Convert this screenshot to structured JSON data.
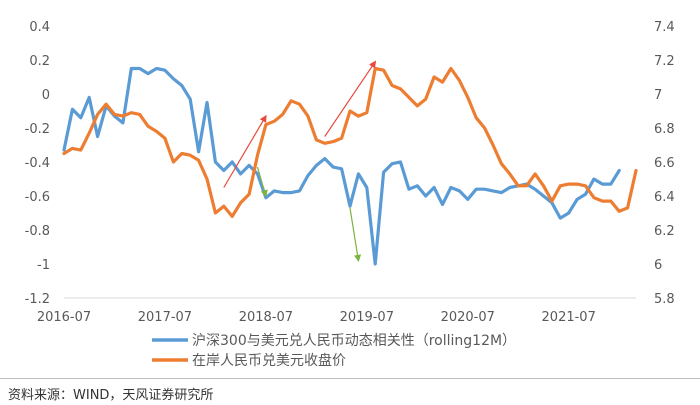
{
  "chart_data": {
    "type": "line",
    "title": "",
    "x_tick_labels": [
      "2016-07",
      "2017-07",
      "2018-07",
      "2019-07",
      "2020-07",
      "2021-07"
    ],
    "x_range": [
      "2016-07",
      "2022-03"
    ],
    "y_left": {
      "range": [
        -1.2,
        0.4
      ],
      "ticks": [
        0.4,
        0.2,
        0,
        -0.2,
        -0.4,
        -0.6,
        -0.8,
        -1,
        -1.2
      ]
    },
    "y_right": {
      "range": [
        5.8,
        7.4
      ],
      "ticks": [
        7.4,
        7.2,
        7,
        6.8,
        6.6,
        6.4,
        6.2,
        6,
        5.8
      ]
    },
    "grid": false,
    "legend_position": "bottom",
    "series": [
      {
        "name": "沪深300与美元兑人民币动态相关性（rolling12M）",
        "axis": "left",
        "color": "#5b9bd5",
        "points": [
          [
            "2016-07",
            -0.33
          ],
          [
            "2016-08",
            -0.09
          ],
          [
            "2016-09",
            -0.14
          ],
          [
            "2016-10",
            -0.02
          ],
          [
            "2016-11",
            -0.25
          ],
          [
            "2016-12",
            -0.07
          ],
          [
            "2017-01",
            -0.13
          ],
          [
            "2017-02",
            -0.17
          ],
          [
            "2017-03",
            0.15
          ],
          [
            "2017-04",
            0.15
          ],
          [
            "2017-05",
            0.12
          ],
          [
            "2017-06",
            0.15
          ],
          [
            "2017-07",
            0.14
          ],
          [
            "2017-08",
            0.09
          ],
          [
            "2017-09",
            0.05
          ],
          [
            "2017-10",
            -0.03
          ],
          [
            "2017-11",
            -0.34
          ],
          [
            "2017-12",
            -0.05
          ],
          [
            "2018-01",
            -0.4
          ],
          [
            "2018-02",
            -0.45
          ],
          [
            "2018-03",
            -0.4
          ],
          [
            "2018-04",
            -0.47
          ],
          [
            "2018-05",
            -0.42
          ],
          [
            "2018-06",
            -0.47
          ],
          [
            "2018-07",
            -0.61
          ],
          [
            "2018-08",
            -0.57
          ],
          [
            "2018-09",
            -0.58
          ],
          [
            "2018-10",
            -0.58
          ],
          [
            "2018-11",
            -0.57
          ],
          [
            "2018-12",
            -0.48
          ],
          [
            "2019-01",
            -0.42
          ],
          [
            "2019-02",
            -0.38
          ],
          [
            "2019-03",
            -0.43
          ],
          [
            "2019-04",
            -0.44
          ],
          [
            "2019-05",
            -0.66
          ],
          [
            "2019-06",
            -0.47
          ],
          [
            "2019-07",
            -0.55
          ],
          [
            "2019-08",
            -1.0
          ],
          [
            "2019-09",
            -0.46
          ],
          [
            "2019-10",
            -0.41
          ],
          [
            "2019-11",
            -0.4
          ],
          [
            "2019-12",
            -0.56
          ],
          [
            "2020-01",
            -0.54
          ],
          [
            "2020-02",
            -0.6
          ],
          [
            "2020-03",
            -0.55
          ],
          [
            "2020-04",
            -0.65
          ],
          [
            "2020-05",
            -0.55
          ],
          [
            "2020-06",
            -0.57
          ],
          [
            "2020-07",
            -0.62
          ],
          [
            "2020-08",
            -0.56
          ],
          [
            "2020-09",
            -0.56
          ],
          [
            "2020-10",
            -0.57
          ],
          [
            "2020-11",
            -0.58
          ],
          [
            "2020-12",
            -0.55
          ],
          [
            "2021-01",
            -0.54
          ],
          [
            "2021-02",
            -0.53
          ],
          [
            "2021-03",
            -0.56
          ],
          [
            "2021-04",
            -0.6
          ],
          [
            "2021-05",
            -0.64
          ],
          [
            "2021-06",
            -0.73
          ],
          [
            "2021-07",
            -0.7
          ],
          [
            "2021-08",
            -0.62
          ],
          [
            "2021-09",
            -0.59
          ],
          [
            "2021-10",
            -0.5
          ],
          [
            "2021-11",
            -0.53
          ],
          [
            "2021-12",
            -0.53
          ],
          [
            "2022-01",
            -0.45
          ]
        ]
      },
      {
        "name": "在岸人民币兑美元收盘价",
        "axis": "right",
        "color": "#ed7d31",
        "points": [
          [
            "2016-07",
            6.65
          ],
          [
            "2016-08",
            6.68
          ],
          [
            "2016-09",
            6.67
          ],
          [
            "2016-10",
            6.77
          ],
          [
            "2016-11",
            6.88
          ],
          [
            "2016-12",
            6.94
          ],
          [
            "2017-01",
            6.88
          ],
          [
            "2017-02",
            6.87
          ],
          [
            "2017-03",
            6.89
          ],
          [
            "2017-04",
            6.88
          ],
          [
            "2017-05",
            6.81
          ],
          [
            "2017-06",
            6.78
          ],
          [
            "2017-07",
            6.74
          ],
          [
            "2017-08",
            6.6
          ],
          [
            "2017-09",
            6.65
          ],
          [
            "2017-10",
            6.64
          ],
          [
            "2017-11",
            6.61
          ],
          [
            "2017-12",
            6.5
          ],
          [
            "2018-01",
            6.3
          ],
          [
            "2018-02",
            6.34
          ],
          [
            "2018-03",
            6.28
          ],
          [
            "2018-04",
            6.36
          ],
          [
            "2018-05",
            6.41
          ],
          [
            "2018-06",
            6.64
          ],
          [
            "2018-07",
            6.82
          ],
          [
            "2018-08",
            6.84
          ],
          [
            "2018-09",
            6.88
          ],
          [
            "2018-10",
            6.96
          ],
          [
            "2018-11",
            6.94
          ],
          [
            "2018-12",
            6.87
          ],
          [
            "2019-01",
            6.73
          ],
          [
            "2019-02",
            6.71
          ],
          [
            "2019-03",
            6.72
          ],
          [
            "2019-04",
            6.74
          ],
          [
            "2019-05",
            6.9
          ],
          [
            "2019-06",
            6.87
          ],
          [
            "2019-07",
            6.89
          ],
          [
            "2019-08",
            7.15
          ],
          [
            "2019-09",
            7.14
          ],
          [
            "2019-10",
            7.05
          ],
          [
            "2019-11",
            7.03
          ],
          [
            "2019-12",
            6.98
          ],
          [
            "2020-01",
            6.93
          ],
          [
            "2020-02",
            6.97
          ],
          [
            "2020-03",
            7.1
          ],
          [
            "2020-04",
            7.07
          ],
          [
            "2020-05",
            7.15
          ],
          [
            "2020-06",
            7.08
          ],
          [
            "2020-07",
            6.98
          ],
          [
            "2020-08",
            6.86
          ],
          [
            "2020-09",
            6.8
          ],
          [
            "2020-10",
            6.7
          ],
          [
            "2020-11",
            6.59
          ],
          [
            "2020-12",
            6.53
          ],
          [
            "2021-01",
            6.46
          ],
          [
            "2021-02",
            6.46
          ],
          [
            "2021-03",
            6.53
          ],
          [
            "2021-04",
            6.46
          ],
          [
            "2021-05",
            6.37
          ],
          [
            "2021-06",
            6.46
          ],
          [
            "2021-07",
            6.47
          ],
          [
            "2021-08",
            6.47
          ],
          [
            "2021-09",
            6.46
          ],
          [
            "2021-10",
            6.39
          ],
          [
            "2021-11",
            6.37
          ],
          [
            "2021-12",
            6.37
          ],
          [
            "2022-01",
            6.31
          ],
          [
            "2022-02",
            6.33
          ],
          [
            "2022-03",
            6.55
          ]
        ]
      }
    ],
    "annotations": [
      {
        "type": "arrow",
        "color": "#e8483b",
        "from": [
          "2018-02",
          -0.55
        ],
        "to": [
          "2018-07",
          -0.13
        ]
      },
      {
        "type": "arrow",
        "color": "#7cb342",
        "from": [
          "2018-06",
          -0.43
        ],
        "to": [
          "2018-07",
          -0.6
        ]
      },
      {
        "type": "arrow",
        "color": "#e8483b",
        "from": [
          "2019-02",
          -0.25
        ],
        "to": [
          "2019-08",
          0.19
        ]
      },
      {
        "type": "arrow",
        "color": "#7cb342",
        "from": [
          "2019-05",
          -0.67
        ],
        "to": [
          "2019-06",
          -0.98
        ]
      }
    ]
  },
  "source_note": "资料来源：WIND，天风证券研究所"
}
